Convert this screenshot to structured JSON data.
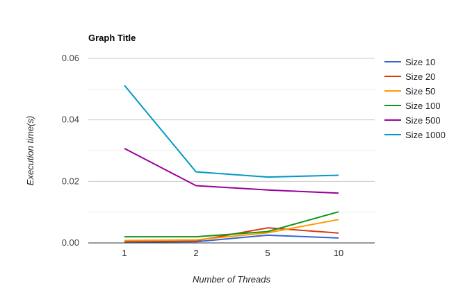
{
  "chart_data": {
    "type": "line",
    "title": "Graph Title",
    "xlabel": "Number of Threads",
    "ylabel": "Execution time(s)",
    "categories": [
      "1",
      "2",
      "5",
      "10"
    ],
    "ylim": [
      0,
      0.06
    ],
    "yticks": [
      "0.00",
      "0.02",
      "0.04",
      "0.06"
    ],
    "grid": true,
    "legend_position": "right",
    "series": [
      {
        "name": "Size 10",
        "color": "#3366cc",
        "values": [
          0.0003,
          0.0004,
          0.0025,
          0.0016
        ]
      },
      {
        "name": "Size 20",
        "color": "#dc3912",
        "values": [
          0.0005,
          0.0007,
          0.0049,
          0.0032
        ]
      },
      {
        "name": "Size 50",
        "color": "#ff9900",
        "values": [
          0.0008,
          0.001,
          0.0033,
          0.0076
        ]
      },
      {
        "name": "Size 100",
        "color": "#109618",
        "values": [
          0.002,
          0.002,
          0.0037,
          0.0101
        ]
      },
      {
        "name": "Size 500",
        "color": "#990099",
        "values": [
          0.0307,
          0.0186,
          0.0172,
          0.0162
        ]
      },
      {
        "name": "Size 1000",
        "color": "#0099c6",
        "values": [
          0.0512,
          0.0231,
          0.0214,
          0.022
        ]
      }
    ]
  }
}
